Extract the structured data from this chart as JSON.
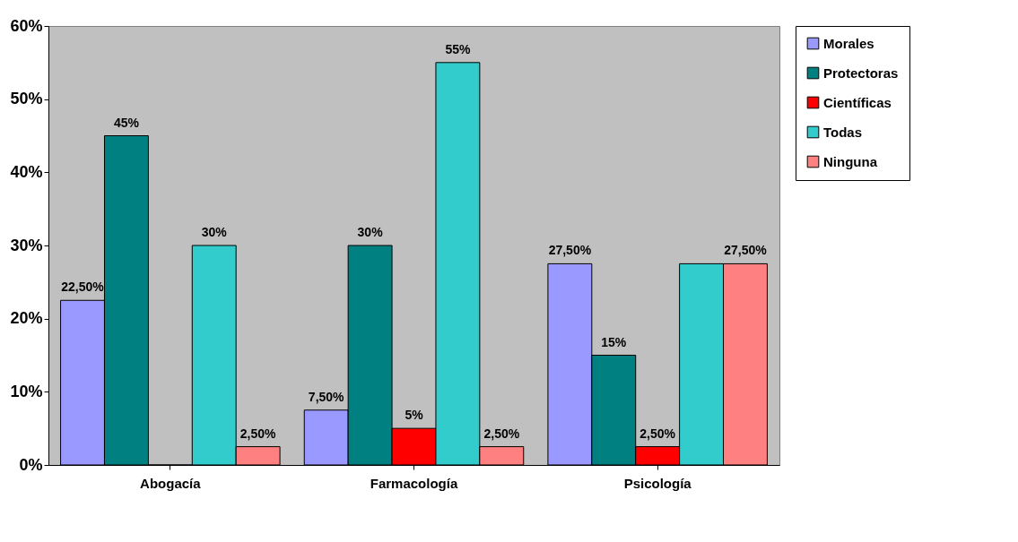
{
  "chart_data": {
    "type": "bar",
    "categories": [
      "Abogacía",
      "Farmacología",
      "Psicología"
    ],
    "series": [
      {
        "name": "Morales",
        "color": "#9999ff",
        "values": [
          22.5,
          7.5,
          27.5
        ],
        "value_labels": [
          "22,50%",
          "7,50%",
          "27,50%"
        ]
      },
      {
        "name": "Protectoras",
        "color": "#008080",
        "values": [
          45,
          30,
          15
        ],
        "value_labels": [
          "45%",
          "30%",
          "15%"
        ]
      },
      {
        "name": "Científicas",
        "color": "#ff0000",
        "values": [
          0,
          5,
          2.5
        ],
        "value_labels": [
          null,
          "5%",
          "2,50%"
        ]
      },
      {
        "name": "Todas",
        "color": "#33cccc",
        "values": [
          30,
          55,
          27.5
        ],
        "value_labels": [
          "30%",
          "55%",
          null
        ]
      },
      {
        "name": "Ninguna",
        "color": "#ff8080",
        "values": [
          2.5,
          2.5,
          27.5
        ],
        "value_labels": [
          "2,50%",
          "2,50%",
          "27,50%"
        ]
      }
    ],
    "ylim": [
      0,
      60
    ],
    "yticks": [
      {
        "value": 0,
        "label": "0%"
      },
      {
        "value": 10,
        "label": "10%"
      },
      {
        "value": 20,
        "label": "20%"
      },
      {
        "value": 30,
        "label": "30%"
      },
      {
        "value": 40,
        "label": "40%"
      },
      {
        "value": 50,
        "label": "50%"
      },
      {
        "value": 60,
        "label": "60%"
      }
    ],
    "grid": false,
    "legend": "right"
  }
}
